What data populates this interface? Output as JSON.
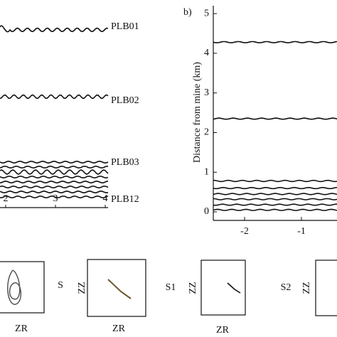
{
  "chart_data": [
    {
      "type": "seismogram",
      "trace_labels": [
        "PLB01",
        "PLB02",
        "PLB03",
        "PLB12"
      ],
      "xlim": [
        1.886,
        4.1
      ],
      "xticks": [
        2,
        3,
        4
      ]
    },
    {
      "type": "offset-traces",
      "panel_label": "b)",
      "y_label": "Distance from mine (km)",
      "trace_distances": [
        4.28,
        2.35,
        0.78,
        0.6,
        0.45,
        0.32,
        0.18,
        0.05
      ],
      "xlim": [
        -2.55,
        -0.375
      ],
      "xticks": [
        -2,
        -1
      ],
      "ylim": [
        0,
        5.2
      ],
      "yticks": [
        0,
        1,
        2,
        3,
        4,
        5
      ]
    }
  ],
  "particle_motion": {
    "boxes": [
      {
        "horizontal": "ZR"
      },
      {
        "horizontal": "ZR",
        "vertical": "ZZ"
      },
      {
        "horizontal": "ZR",
        "vertical": "ZZ"
      },
      {
        "vertical": "ZZ"
      }
    ],
    "phases": [
      "S",
      "S1",
      "S2"
    ]
  }
}
